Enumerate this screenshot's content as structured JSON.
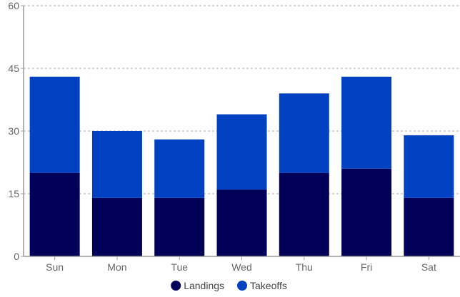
{
  "chart_data": {
    "type": "bar",
    "stacked": true,
    "categories": [
      "Sun",
      "Mon",
      "Tue",
      "Wed",
      "Thu",
      "Fri",
      "Sat"
    ],
    "series": [
      {
        "name": "Landings",
        "values": [
          20,
          14,
          14,
          16,
          20,
          21,
          14
        ],
        "color": "#000058"
      },
      {
        "name": "Takeoffs",
        "values": [
          23,
          16,
          14,
          18,
          19,
          22,
          15
        ],
        "color": "#0041C2"
      }
    ],
    "ylim": [
      0,
      60
    ],
    "yticks": [
      0,
      15,
      30,
      45,
      60
    ],
    "grid": true,
    "legend_position": "bottom"
  }
}
